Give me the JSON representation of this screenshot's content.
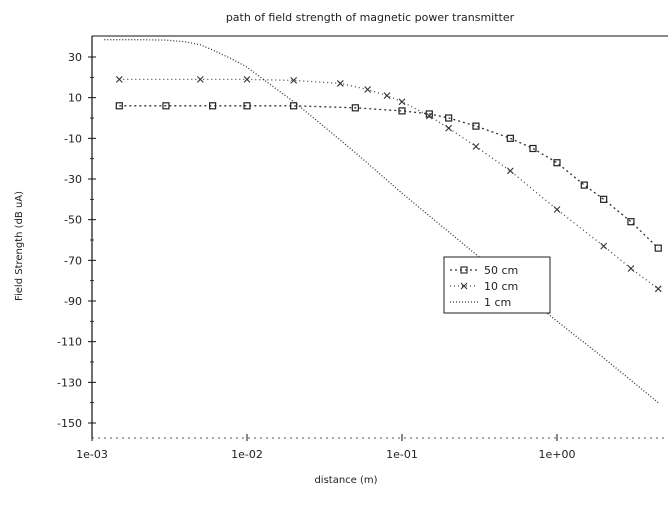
{
  "chart_data": {
    "type": "line",
    "title": "path of field strength of magnetic power transmitter",
    "xlabel": "distance (m)",
    "ylabel": "Field Strength (dB uA)",
    "x_scale": "log",
    "xlim": [
      0.001,
      4.5
    ],
    "ylim": [
      -150,
      50
    ],
    "x_ticks": [
      0.001,
      0.01,
      0.1,
      1
    ],
    "x_tick_labels": [
      "1e-03",
      "1e-02",
      "1e-01",
      "1e+00"
    ],
    "y_ticks": [
      30,
      10,
      -10,
      -30,
      -50,
      -70,
      -90,
      -110,
      -130,
      -150
    ],
    "grid": false,
    "legend_position": "right",
    "series": [
      {
        "name": "50 cm",
        "marker": "square",
        "x": [
          0.0015,
          0.003,
          0.006,
          0.01,
          0.02,
          0.05,
          0.1,
          0.15,
          0.2,
          0.3,
          0.5,
          0.7,
          1.0,
          1.5,
          2.0,
          3.0,
          4.5
        ],
        "y": [
          6,
          6,
          6,
          6,
          6,
          5,
          3.5,
          2,
          0,
          -4,
          -10,
          -15,
          -22,
          -33,
          -40,
          -51,
          -64
        ]
      },
      {
        "name": "10 cm",
        "marker": "x",
        "x": [
          0.0015,
          0.005,
          0.01,
          0.02,
          0.04,
          0.06,
          0.08,
          0.1,
          0.15,
          0.2,
          0.3,
          0.5,
          1.0,
          2.0,
          3.0,
          4.5
        ],
        "y": [
          19,
          19,
          19,
          18.5,
          17,
          14,
          11,
          8,
          1,
          -5,
          -14,
          -26,
          -45,
          -63,
          -74,
          -84
        ]
      },
      {
        "name": "1 cm",
        "marker": "none",
        "x": [
          0.0012,
          0.002,
          0.003,
          0.004,
          0.005,
          0.006,
          0.008,
          0.01,
          0.015,
          0.02,
          0.03,
          0.05,
          0.1,
          0.2,
          0.5,
          1.0,
          2.0,
          4.5
        ],
        "y": [
          38.5,
          38.5,
          38.3,
          37.5,
          36,
          33.5,
          29,
          25,
          15,
          8,
          -3,
          -17,
          -37,
          -56,
          -81,
          -100,
          -118,
          -140
        ]
      }
    ]
  }
}
